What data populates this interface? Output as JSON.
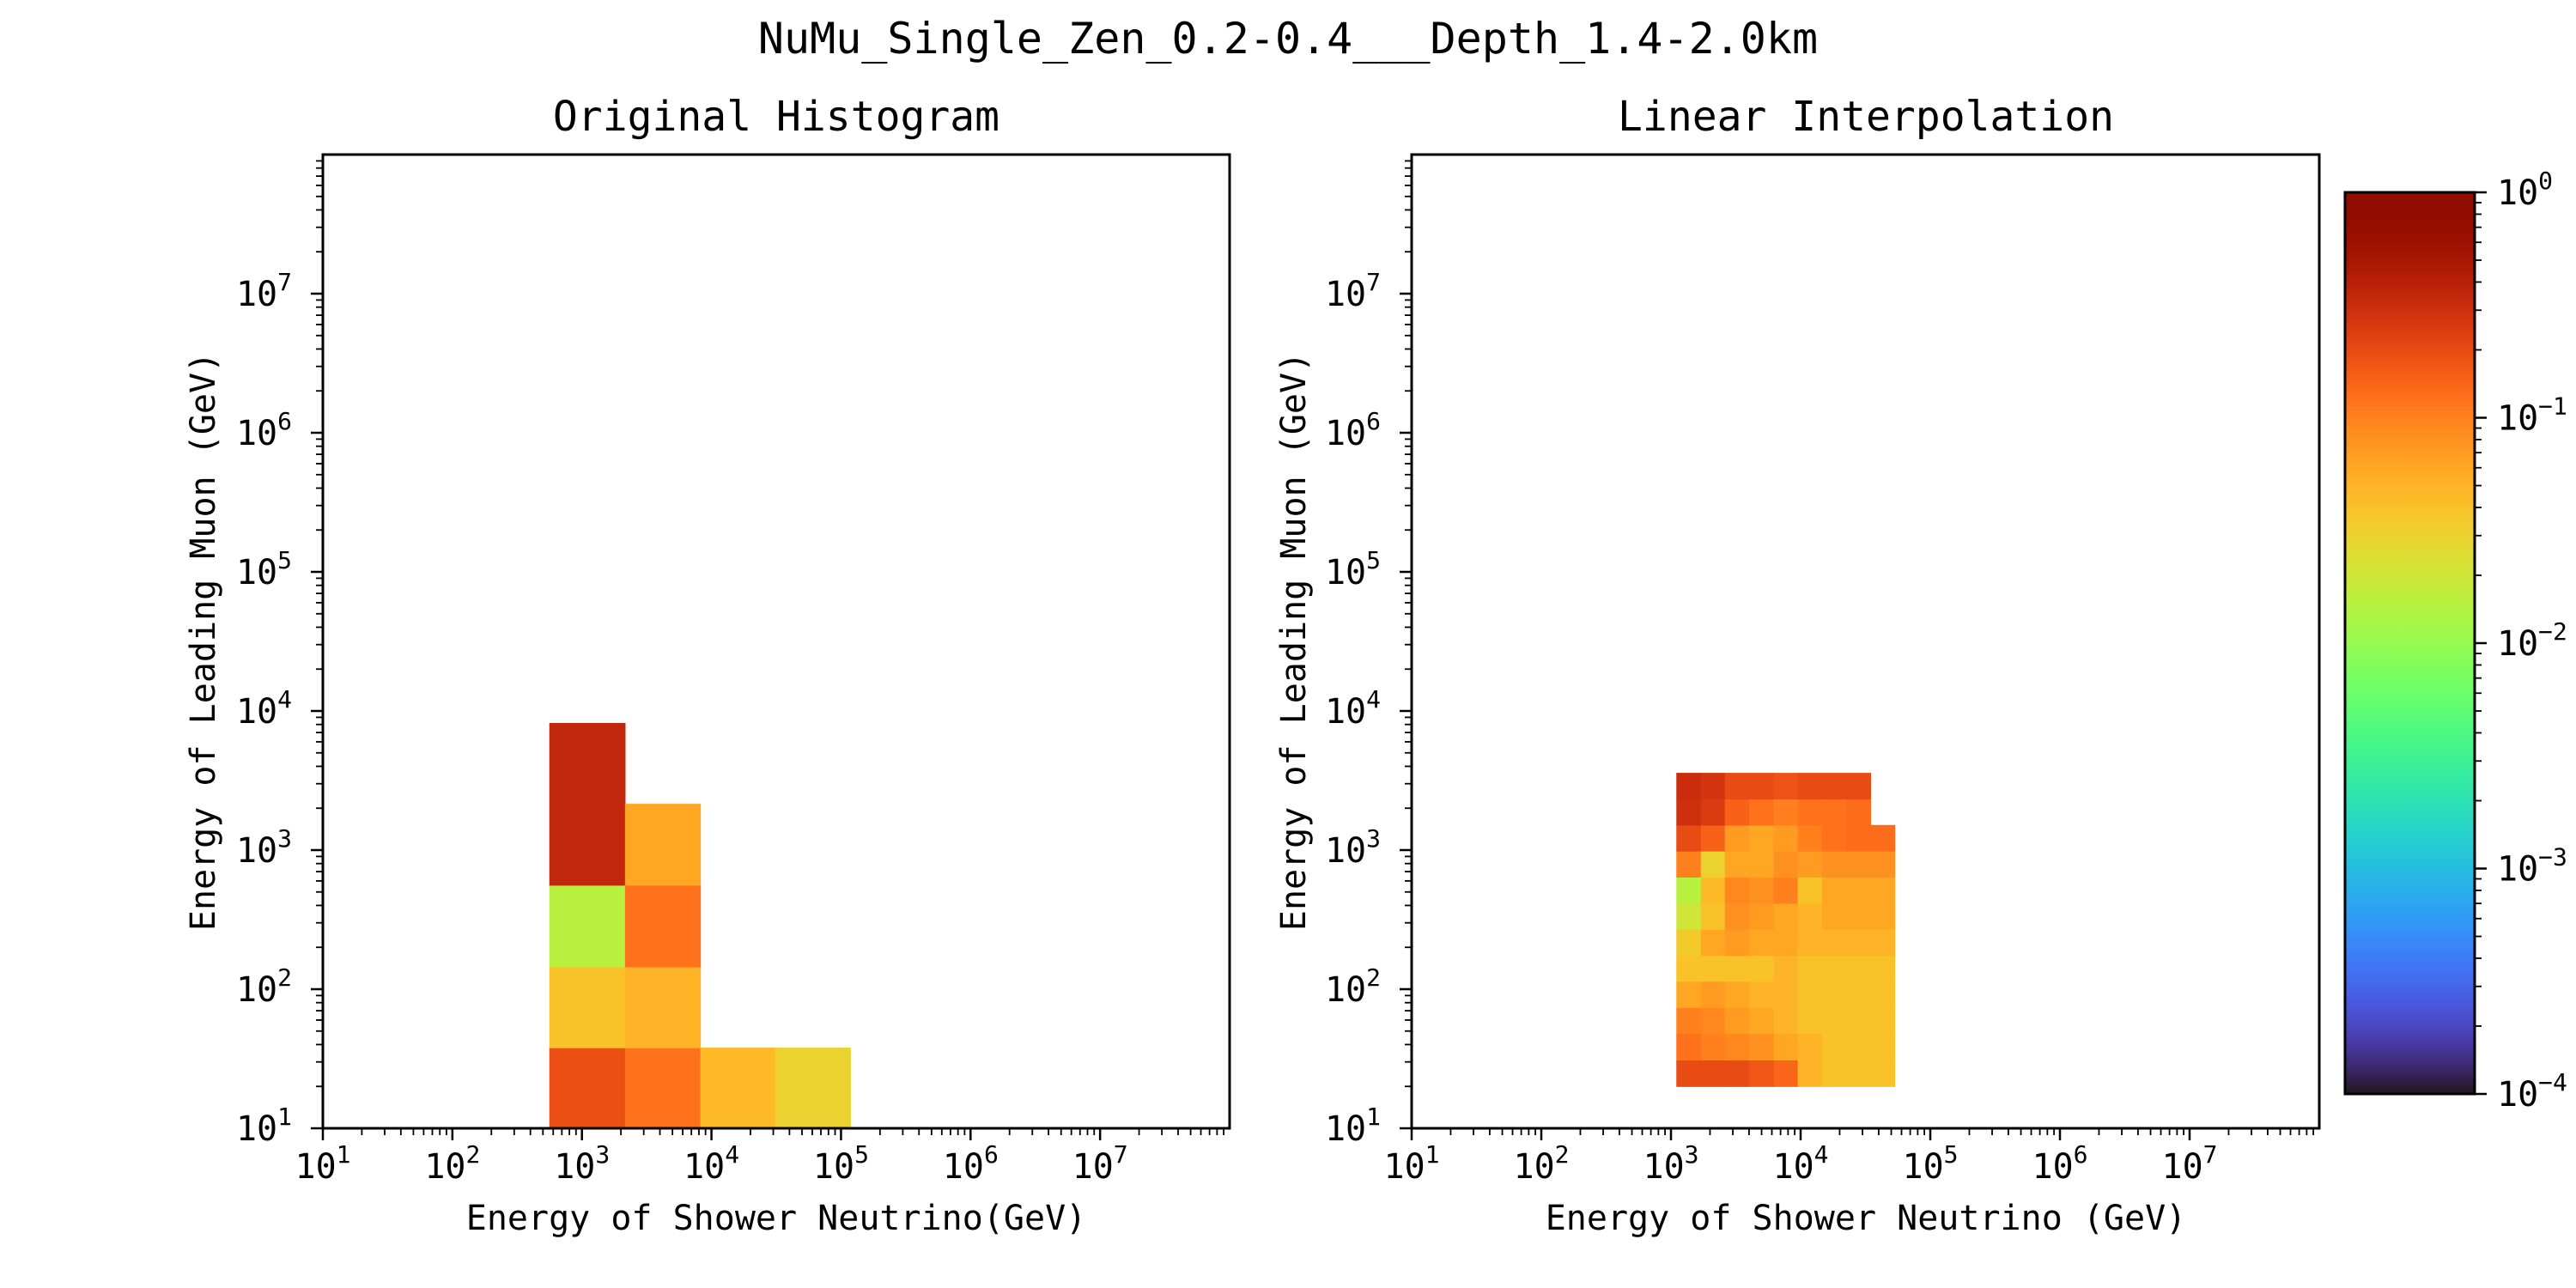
{
  "figure": {
    "suptitle": "NuMu_Single_Zen_0.2-0.4___Depth_1.4-2.0km"
  },
  "colors": {
    "colormap": "turbo",
    "empty_cell": "#ffffff",
    "axes": "#000000"
  },
  "colorbar": {
    "scale": "log",
    "range": [
      0.0001,
      1
    ],
    "ticks": [
      {
        "base": "10",
        "exp": "0",
        "value": 1
      },
      {
        "base": "10",
        "exp": "−1",
        "value": 0.1
      },
      {
        "base": "10",
        "exp": "−2",
        "value": 0.01
      },
      {
        "base": "10",
        "exp": "−3",
        "value": 0.001
      },
      {
        "base": "10",
        "exp": "−4",
        "value": 0.0001
      }
    ]
  },
  "chart_data": [
    {
      "type": "heatmap",
      "title": "Original Histogram",
      "xlabel": "Energy of Shower Neutrino(GeV)",
      "ylabel": "Energy of Leading Muon (GeV)",
      "xscale": "log",
      "yscale": "log",
      "xlim": [
        10,
        100000000
      ],
      "ylim": [
        10,
        100000000
      ],
      "xticks": [
        {
          "base": "10",
          "exp": "1"
        },
        {
          "base": "10",
          "exp": "2"
        },
        {
          "base": "10",
          "exp": "3"
        },
        {
          "base": "10",
          "exp": "4"
        },
        {
          "base": "10",
          "exp": "5"
        },
        {
          "base": "10",
          "exp": "6"
        },
        {
          "base": "10",
          "exp": "7"
        }
      ],
      "yticks": [
        {
          "base": "10",
          "exp": "1"
        },
        {
          "base": "10",
          "exp": "2"
        },
        {
          "base": "10",
          "exp": "3"
        },
        {
          "base": "10",
          "exp": "4"
        },
        {
          "base": "10",
          "exp": "5"
        },
        {
          "base": "10",
          "exp": "6"
        },
        {
          "base": "10",
          "exp": "7"
        }
      ],
      "color_scale": "log",
      "cells": [
        {
          "x": [
            560,
            2150
          ],
          "y": [
            10,
            38
          ],
          "value": 0.19
        },
        {
          "x": [
            2150,
            8200
          ],
          "y": [
            10,
            38
          ],
          "value": 0.12
        },
        {
          "x": [
            8200,
            31000
          ],
          "y": [
            10,
            38
          ],
          "value": 0.045
        },
        {
          "x": [
            31000,
            118000
          ],
          "y": [
            10,
            38
          ],
          "value": 0.03
        },
        {
          "x": [
            560,
            2150
          ],
          "y": [
            38,
            145
          ],
          "value": 0.04
        },
        {
          "x": [
            2150,
            8200
          ],
          "y": [
            38,
            145
          ],
          "value": 0.05
        },
        {
          "x": [
            560,
            2150
          ],
          "y": [
            145,
            560
          ],
          "value": 0.015
        },
        {
          "x": [
            2150,
            8200
          ],
          "y": [
            145,
            560
          ],
          "value": 0.12
        },
        {
          "x": [
            560,
            2150
          ],
          "y": [
            560,
            8200
          ],
          "value": 0.35
        },
        {
          "x": [
            2150,
            8200
          ],
          "y": [
            560,
            2150
          ],
          "value": 0.06
        }
      ]
    },
    {
      "type": "heatmap",
      "title": "Linear Interpolation",
      "xlabel": "Energy of Shower Neutrino (GeV)",
      "ylabel": "Energy of Leading Muon (GeV)",
      "xscale": "log",
      "yscale": "log",
      "xlim": [
        10,
        100000000
      ],
      "ylim": [
        10,
        100000000
      ],
      "xticks": [
        {
          "base": "10",
          "exp": "1"
        },
        {
          "base": "10",
          "exp": "2"
        },
        {
          "base": "10",
          "exp": "3"
        },
        {
          "base": "10",
          "exp": "4"
        },
        {
          "base": "10",
          "exp": "5"
        },
        {
          "base": "10",
          "exp": "6"
        },
        {
          "base": "10",
          "exp": "7"
        }
      ],
      "yticks": [
        {
          "base": "10",
          "exp": "1"
        },
        {
          "base": "10",
          "exp": "2"
        },
        {
          "base": "10",
          "exp": "3"
        },
        {
          "base": "10",
          "exp": "4"
        },
        {
          "base": "10",
          "exp": "5"
        },
        {
          "base": "10",
          "exp": "6"
        },
        {
          "base": "10",
          "exp": "7"
        }
      ],
      "color_scale": "log",
      "grid_x_edges": [
        1100,
        1700,
        2600,
        4000,
        6200,
        9500,
        14600,
        22500,
        34600,
        53200
      ],
      "grid_y_edges": [
        20,
        31,
        48,
        74,
        114,
        175,
        270,
        415,
        640,
        985,
        1515,
        2330,
        3590
      ],
      "values": [
        [
          0.2,
          0.2,
          0.2,
          0.17,
          0.14,
          0.05,
          0.04,
          0.04,
          0.04
        ],
        [
          0.12,
          0.1,
          0.09,
          0.08,
          0.06,
          0.05,
          0.04,
          0.04,
          0.04
        ],
        [
          0.1,
          0.09,
          0.07,
          0.06,
          0.05,
          0.04,
          0.04,
          0.04,
          0.04
        ],
        [
          0.06,
          0.07,
          0.06,
          0.05,
          0.05,
          0.04,
          0.04,
          0.04,
          0.04
        ],
        [
          0.04,
          0.04,
          0.04,
          0.04,
          0.05,
          0.04,
          0.04,
          0.04,
          0.04
        ],
        [
          0.035,
          0.06,
          0.07,
          0.06,
          0.06,
          0.05,
          0.05,
          0.05,
          0.05
        ],
        [
          0.02,
          0.04,
          0.08,
          0.07,
          0.06,
          0.05,
          0.06,
          0.06,
          0.06
        ],
        [
          0.015,
          0.045,
          0.09,
          0.08,
          0.1,
          0.04,
          0.06,
          0.06,
          0.06
        ],
        [
          0.1,
          0.03,
          0.06,
          0.06,
          0.08,
          0.07,
          0.08,
          0.08,
          0.08
        ],
        [
          0.2,
          0.15,
          0.07,
          0.06,
          0.07,
          0.1,
          0.12,
          0.13,
          0.13
        ],
        [
          0.3,
          0.25,
          0.15,
          0.12,
          0.1,
          0.12,
          0.12,
          0.13,
          null
        ],
        [
          0.32,
          0.28,
          0.2,
          0.2,
          0.18,
          0.2,
          0.2,
          0.2,
          null
        ],
        [
          0.3,
          0.28,
          0.28,
          0.25,
          0.25,
          0.22,
          null,
          null,
          null
        ]
      ]
    }
  ]
}
